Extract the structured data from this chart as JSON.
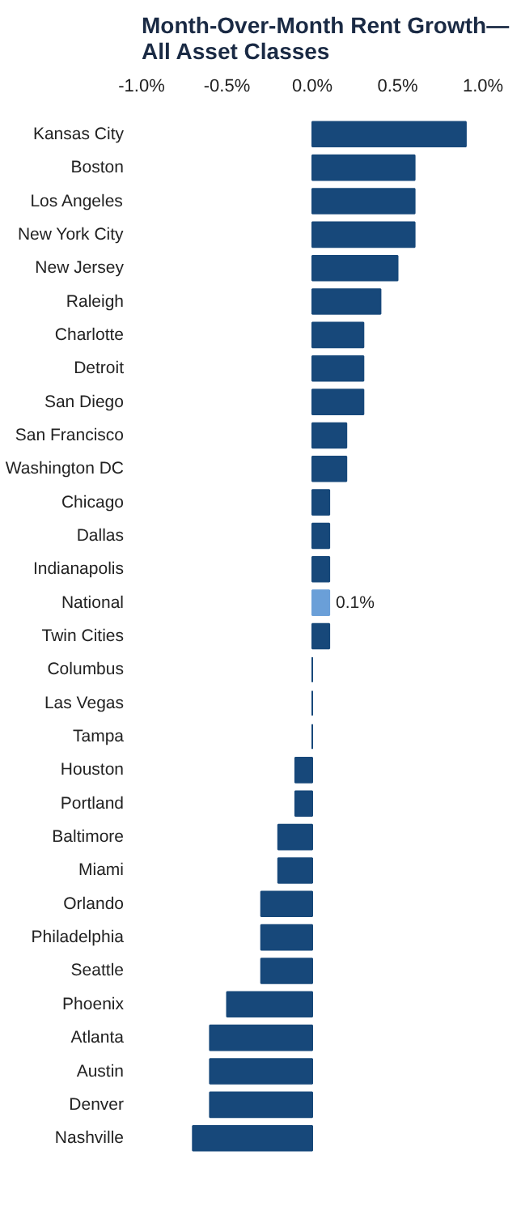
{
  "chart_data": {
    "type": "bar",
    "orientation": "horizontal",
    "title": "Month-Over-Month Rent Growth—All Asset Classes",
    "categories": [
      "Kansas City",
      "Boston",
      "Los Angeles",
      "New York City",
      "New Jersey",
      "Raleigh",
      "Charlotte",
      "Detroit",
      "San Diego",
      "San Francisco",
      "Washington DC",
      "Chicago",
      "Dallas",
      "Indianapolis",
      "National",
      "Twin Cities",
      "Columbus",
      "Las Vegas",
      "Tampa",
      "Houston",
      "Portland",
      "Baltimore",
      "Miami",
      "Orlando",
      "Philadelphia",
      "Seattle",
      "Phoenix",
      "Atlanta",
      "Austin",
      "Denver",
      "Nashville"
    ],
    "values": [
      0.9,
      0.6,
      0.6,
      0.6,
      0.5,
      0.4,
      0.3,
      0.3,
      0.3,
      0.2,
      0.2,
      0.1,
      0.1,
      0.1,
      0.1,
      0.1,
      0,
      0,
      0,
      -0.1,
      -0.1,
      -0.2,
      -0.2,
      -0.3,
      -0.3,
      -0.3,
      -0.5,
      -0.6,
      -0.6,
      -0.6,
      -0.7
    ],
    "colors": [
      "#17487a",
      "#17487a",
      "#17487a",
      "#17487a",
      "#17487a",
      "#17487a",
      "#17487a",
      "#17487a",
      "#17487a",
      "#17487a",
      "#17487a",
      "#17487a",
      "#17487a",
      "#17487a",
      "#6a9fd8",
      "#17487a",
      "#17487a",
      "#17487a",
      "#17487a",
      "#17487a",
      "#17487a",
      "#17487a",
      "#17487a",
      "#17487a",
      "#17487a",
      "#17487a",
      "#17487a",
      "#17487a",
      "#17487a",
      "#17487a",
      "#17487a"
    ],
    "value_labels": [
      null,
      null,
      null,
      null,
      null,
      null,
      null,
      null,
      null,
      null,
      null,
      null,
      null,
      null,
      "0.1%",
      null,
      null,
      null,
      null,
      null,
      null,
      null,
      null,
      null,
      null,
      null,
      null,
      null,
      null,
      null,
      null
    ],
    "xlim": [
      -1.0,
      1.0
    ],
    "xticks": [
      {
        "value": -1.0,
        "label": "-1.0%"
      },
      {
        "value": -0.5,
        "label": "-0.5%"
      },
      {
        "value": 0.0,
        "label": "0.0%"
      },
      {
        "value": 0.5,
        "label": "0.5%"
      },
      {
        "value": 1.0,
        "label": "1.0%"
      }
    ],
    "grid": false
  }
}
